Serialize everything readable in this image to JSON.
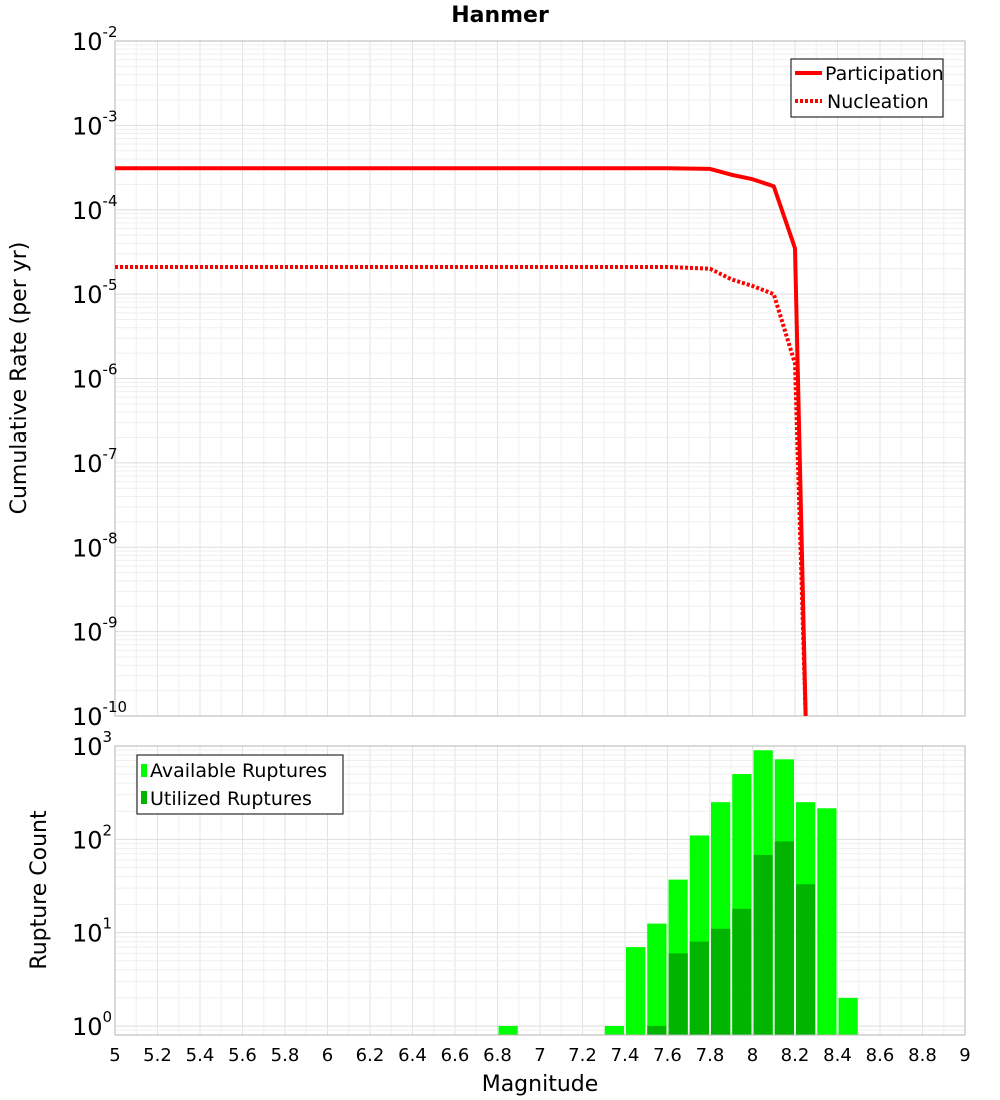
{
  "chart_data": [
    {
      "type": "line",
      "title": "Hanmer",
      "xlabel": "",
      "ylabel": "Cumulative Rate (per yr)",
      "y_scale": "log",
      "xlim": [
        5,
        9
      ],
      "ylim": [
        1e-10,
        0.01
      ],
      "y_ticks": [
        {
          "base": "10",
          "exp": "-10"
        },
        {
          "base": "10",
          "exp": "-9"
        },
        {
          "base": "10",
          "exp": "-8"
        },
        {
          "base": "10",
          "exp": "-7"
        },
        {
          "base": "10",
          "exp": "-6"
        },
        {
          "base": "10",
          "exp": "-5"
        },
        {
          "base": "10",
          "exp": "-4"
        },
        {
          "base": "10",
          "exp": "-3"
        },
        {
          "base": "10",
          "exp": "-2"
        }
      ],
      "legend_position": "top-right",
      "grid": true,
      "series": [
        {
          "name": "Participation",
          "style": "solid",
          "color": "#ff0000",
          "points": [
            {
              "x": 5.0,
              "y": 0.00031
            },
            {
              "x": 7.6,
              "y": 0.00031
            },
            {
              "x": 7.8,
              "y": 0.000305
            },
            {
              "x": 7.9,
              "y": 0.00026
            },
            {
              "x": 8.0,
              "y": 0.00023
            },
            {
              "x": 8.1,
              "y": 0.00019
            },
            {
              "x": 8.2,
              "y": 3.5e-05
            },
            {
              "x": 8.25,
              "y": 1e-10
            }
          ]
        },
        {
          "name": "Nucleation",
          "style": "dotted",
          "color": "#ff0000",
          "points": [
            {
              "x": 5.0,
              "y": 2.1e-05
            },
            {
              "x": 7.6,
              "y": 2.1e-05
            },
            {
              "x": 7.8,
              "y": 2e-05
            },
            {
              "x": 7.9,
              "y": 1.5e-05
            },
            {
              "x": 8.0,
              "y": 1.25e-05
            },
            {
              "x": 8.1,
              "y": 1e-05
            },
            {
              "x": 8.2,
              "y": 1.5e-06
            },
            {
              "x": 8.25,
              "y": 1e-10
            }
          ]
        }
      ]
    },
    {
      "type": "bar",
      "title": "",
      "xlabel": "Magnitude",
      "ylabel": "Rupture Count",
      "y_scale": "log",
      "xlim": [
        5,
        9
      ],
      "ylim": [
        0.8,
        1000
      ],
      "bin_width": 0.1,
      "x_tick_labels": [
        "5",
        "5.2",
        "5.4",
        "5.6",
        "5.8",
        "6",
        "6.2",
        "6.4",
        "6.6",
        "6.8",
        "7",
        "7.2",
        "7.4",
        "7.6",
        "7.8",
        "8",
        "8.2",
        "8.4",
        "8.6",
        "8.8",
        "9"
      ],
      "y_ticks": [
        {
          "base": "10",
          "exp": "0"
        },
        {
          "base": "10",
          "exp": "1"
        },
        {
          "base": "10",
          "exp": "2"
        },
        {
          "base": "10",
          "exp": "3"
        }
      ],
      "legend_position": "top-left",
      "grid": true,
      "series": [
        {
          "name": "Available Ruptures",
          "color": "#00ff00",
          "bins": [
            {
              "x": 6.85,
              "y": 1
            },
            {
              "x": 7.35,
              "y": 1
            },
            {
              "x": 7.45,
              "y": 7
            },
            {
              "x": 7.55,
              "y": 12.5
            },
            {
              "x": 7.65,
              "y": 37
            },
            {
              "x": 7.75,
              "y": 110
            },
            {
              "x": 7.85,
              "y": 250
            },
            {
              "x": 7.95,
              "y": 500
            },
            {
              "x": 8.05,
              "y": 900
            },
            {
              "x": 8.15,
              "y": 720
            },
            {
              "x": 8.25,
              "y": 250
            },
            {
              "x": 8.35,
              "y": 215
            },
            {
              "x": 8.45,
              "y": 2
            }
          ]
        },
        {
          "name": "Utilized Ruptures",
          "color": "#00b400",
          "bins": [
            {
              "x": 7.55,
              "y": 1
            },
            {
              "x": 7.65,
              "y": 6
            },
            {
              "x": 7.75,
              "y": 8
            },
            {
              "x": 7.85,
              "y": 11
            },
            {
              "x": 7.95,
              "y": 18
            },
            {
              "x": 8.05,
              "y": 68
            },
            {
              "x": 8.15,
              "y": 95
            },
            {
              "x": 8.25,
              "y": 33
            }
          ]
        }
      ]
    }
  ]
}
